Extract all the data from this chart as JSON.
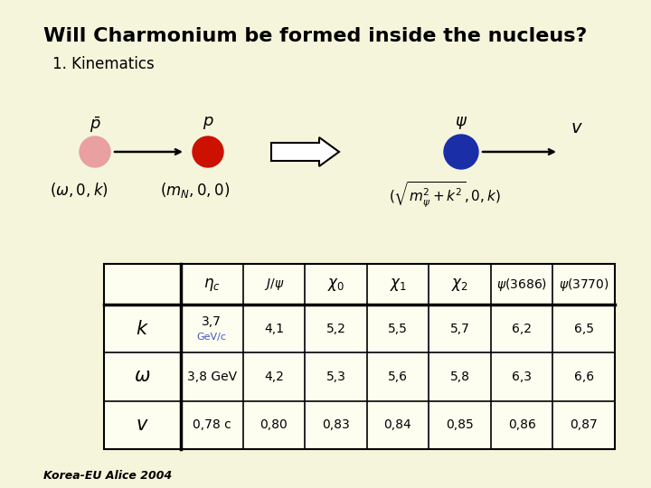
{
  "title": "Will Charmonium be formed inside the nucleus?",
  "subtitle": "1. Kinematics",
  "bg_color": "#F5F5DC",
  "footer": "Korea-EU Alice 2004",
  "col_headers": [
    "$\\eta_c$",
    "$J/\\psi$",
    "$\\chi_0$",
    "$\\chi_1$",
    "$\\chi_2$",
    "$\\psi(3686)$",
    "$\\psi(3770)$"
  ],
  "row_headers": [
    "$k$",
    "$\\omega$",
    "$v$"
  ],
  "row0_sub_line1": "3,7",
  "row0_sub_line2": "GeV/c",
  "row1_col0": "3,8 GeV",
  "row2_col0": "0,78 c",
  "table_data": [
    [
      "",
      "4,1",
      "5,2",
      "5,5",
      "5,7",
      "6,2",
      "6,5"
    ],
    [
      "",
      "4,2",
      "5,3",
      "5,6",
      "5,8",
      "6,3",
      "6,6"
    ],
    [
      "",
      "0,80",
      "0,83",
      "0,84",
      "0,85",
      "0,86",
      "0,87"
    ]
  ],
  "pbar_color": "#E8A0A0",
  "p_color": "#CC1100",
  "psi_color": "#1a2ea8",
  "arrow_color": "#000000"
}
